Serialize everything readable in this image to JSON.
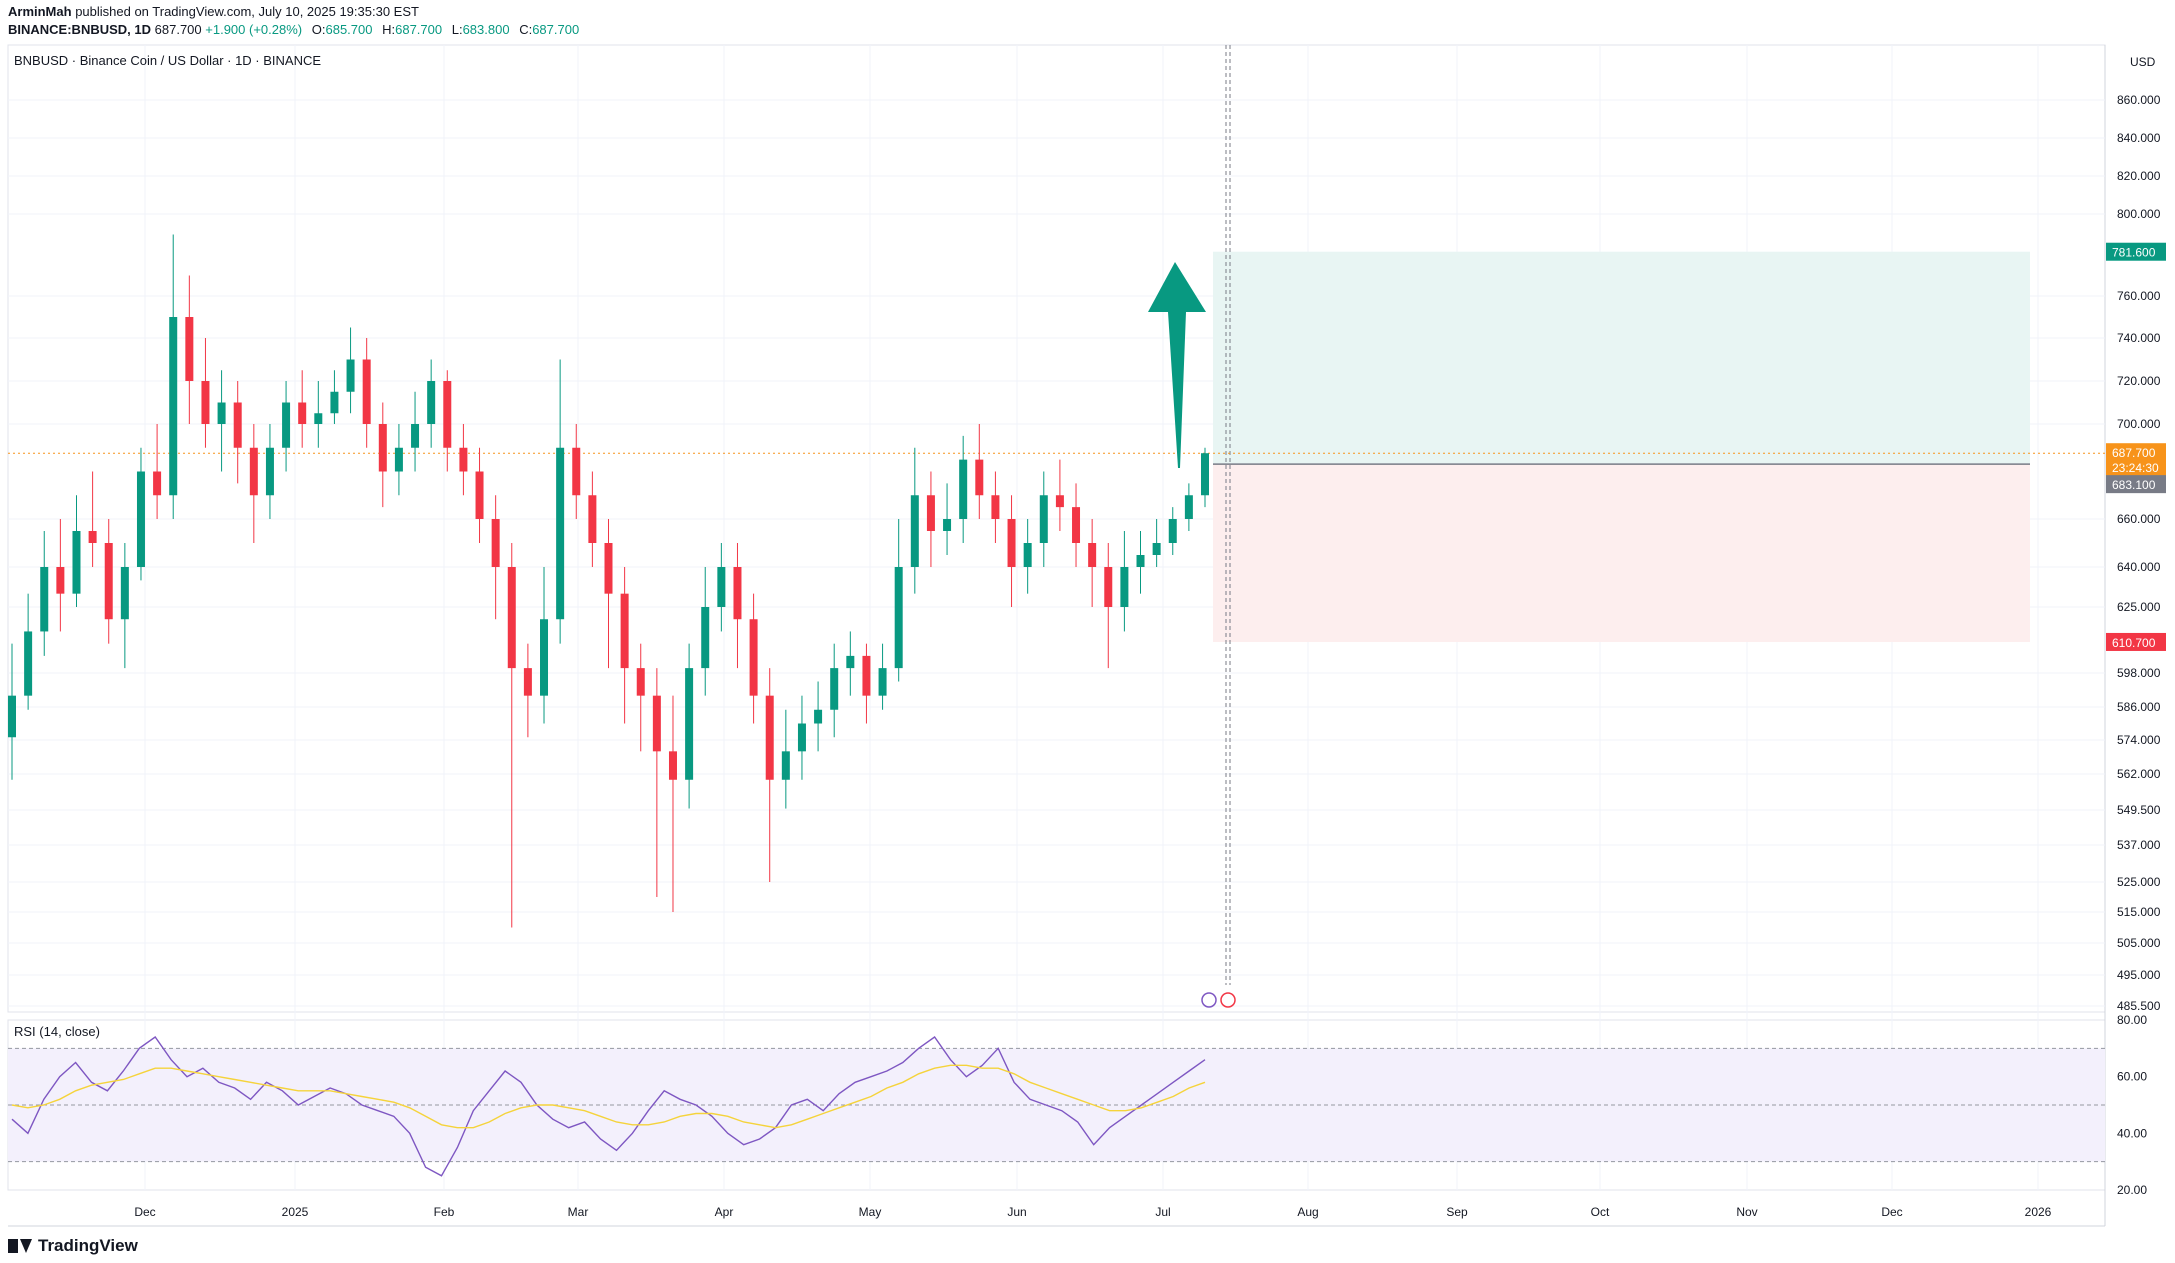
{
  "header": {
    "author": "ArminMah",
    "published_text": "published on TradingView.com, July 10, 2025 19:35:30 EST",
    "symbol": "BINANCE:BNBUSD, 1D",
    "last": "687.700",
    "change": "+1.900 (+0.28%)",
    "o_label": "O:",
    "o": "685.700",
    "h_label": "H:",
    "h": "687.700",
    "l_label": "L:",
    "l": "683.800",
    "c_label": "C:",
    "c": "687.700"
  },
  "legend": "BNBUSD · Binance Coin / US Dollar · 1D · BINANCE",
  "rsi_legend": "RSI (14, close)",
  "footer": {
    "brand": "TradingView"
  },
  "colors": {
    "up": "#089981",
    "down": "#f23645",
    "rsi": "#7e57c2",
    "rsi_ma": "#f5d33b",
    "target_zone": "#e8f5f3",
    "stop_zone": "#fdeeee",
    "last_price": "#f7931a",
    "entry": "#787b86"
  },
  "chart_data": [
    {
      "type": "candlestick",
      "currency_label": "USD",
      "y_ticks": [
        "860.000",
        "840.000",
        "820.000",
        "800.000",
        "760.000",
        "740.000",
        "720.000",
        "700.000",
        "660.000",
        "640.000",
        "625.000",
        "598.000",
        "586.000",
        "574.000",
        "562.000",
        "549.500",
        "537.000",
        "525.000",
        "515.000",
        "505.000",
        "495.000",
        "485.500"
      ],
      "x_ticks": [
        "Dec",
        "2025",
        "Feb",
        "Mar",
        "Apr",
        "May",
        "Jun",
        "Jul",
        "Aug",
        "Sep",
        "Oct",
        "Nov",
        "Dec",
        "2026"
      ],
      "price_markers": {
        "target": "781.600",
        "last": "687.700",
        "countdown": "23:24:30",
        "entry": "683.100",
        "stop": "610.700"
      },
      "position": {
        "entry": 683.1,
        "target": 781.6,
        "stop": 610.7
      },
      "arrow": "up",
      "candles_approx": [
        [
          575,
          590,
          610,
          560
        ],
        [
          590,
          615,
          630,
          585
        ],
        [
          615,
          640,
          655,
          605
        ],
        [
          640,
          630,
          660,
          615
        ],
        [
          630,
          655,
          670,
          625
        ],
        [
          655,
          650,
          680,
          640
        ],
        [
          650,
          620,
          660,
          610
        ],
        [
          620,
          640,
          650,
          600
        ],
        [
          640,
          680,
          690,
          635
        ],
        [
          680,
          670,
          700,
          660
        ],
        [
          670,
          750,
          790,
          660
        ],
        [
          750,
          720,
          770,
          700
        ],
        [
          720,
          700,
          740,
          690
        ],
        [
          700,
          710,
          725,
          680
        ],
        [
          710,
          690,
          720,
          675
        ],
        [
          690,
          670,
          700,
          650
        ],
        [
          670,
          690,
          700,
          660
        ],
        [
          690,
          710,
          720,
          680
        ],
        [
          710,
          700,
          725,
          690
        ],
        [
          700,
          705,
          720,
          690
        ],
        [
          705,
          715,
          725,
          700
        ],
        [
          715,
          730,
          745,
          705
        ],
        [
          730,
          700,
          740,
          690
        ],
        [
          700,
          680,
          710,
          665
        ],
        [
          680,
          690,
          700,
          670
        ],
        [
          690,
          700,
          715,
          680
        ],
        [
          700,
          720,
          730,
          690
        ],
        [
          720,
          690,
          725,
          680
        ],
        [
          690,
          680,
          700,
          670
        ],
        [
          680,
          660,
          690,
          650
        ],
        [
          660,
          640,
          670,
          620
        ],
        [
          640,
          600,
          650,
          510
        ],
        [
          600,
          590,
          610,
          575
        ],
        [
          590,
          620,
          640,
          580
        ],
        [
          620,
          690,
          730,
          610
        ],
        [
          690,
          670,
          700,
          660
        ],
        [
          670,
          650,
          680,
          640
        ],
        [
          650,
          630,
          660,
          600
        ],
        [
          630,
          600,
          640,
          580
        ],
        [
          600,
          590,
          610,
          570
        ],
        [
          590,
          570,
          600,
          520
        ],
        [
          570,
          560,
          590,
          515
        ],
        [
          560,
          600,
          610,
          550
        ],
        [
          600,
          625,
          640,
          590
        ],
        [
          625,
          640,
          650,
          615
        ],
        [
          640,
          620,
          650,
          600
        ],
        [
          620,
          590,
          630,
          580
        ],
        [
          590,
          560,
          600,
          525
        ],
        [
          560,
          570,
          585,
          550
        ],
        [
          570,
          580,
          590,
          560
        ],
        [
          580,
          585,
          595,
          570
        ],
        [
          585,
          600,
          610,
          575
        ],
        [
          600,
          605,
          615,
          590
        ],
        [
          605,
          590,
          610,
          580
        ],
        [
          590,
          600,
          610,
          585
        ],
        [
          600,
          640,
          660,
          595
        ],
        [
          640,
          670,
          690,
          630
        ],
        [
          670,
          655,
          680,
          640
        ],
        [
          655,
          660,
          675,
          645
        ],
        [
          660,
          685,
          695,
          650
        ],
        [
          685,
          670,
          700,
          660
        ],
        [
          670,
          660,
          680,
          650
        ],
        [
          660,
          640,
          670,
          625
        ],
        [
          640,
          650,
          660,
          630
        ],
        [
          650,
          670,
          680,
          640
        ],
        [
          670,
          665,
          685,
          655
        ],
        [
          665,
          650,
          675,
          640
        ],
        [
          650,
          640,
          660,
          625
        ],
        [
          640,
          625,
          650,
          600
        ],
        [
          625,
          640,
          655,
          615
        ],
        [
          640,
          645,
          655,
          630
        ],
        [
          645,
          650,
          660,
          640
        ],
        [
          650,
          660,
          665,
          645
        ],
        [
          660,
          670,
          675,
          655
        ],
        [
          670,
          687.7,
          690,
          665
        ]
      ]
    },
    {
      "type": "line",
      "name": "RSI (14, close)",
      "y_ticks": [
        "80.00",
        "60.00",
        "40.00",
        "20.00"
      ],
      "bands": [
        70,
        50,
        30
      ],
      "ylim": [
        20,
        80
      ],
      "series": [
        {
          "name": "RSI",
          "values": [
            45,
            40,
            52,
            60,
            65,
            58,
            55,
            62,
            70,
            74,
            66,
            60,
            63,
            58,
            56,
            52,
            58,
            55,
            50,
            53,
            56,
            54,
            50,
            48,
            46,
            40,
            28,
            25,
            35,
            48,
            55,
            62,
            58,
            50,
            45,
            42,
            44,
            38,
            34,
            40,
            48,
            55,
            52,
            50,
            46,
            40,
            36,
            38,
            42,
            50,
            52,
            48,
            54,
            58,
            60,
            62,
            65,
            70,
            74,
            66,
            60,
            64,
            70,
            58,
            52,
            50,
            48,
            44,
            36,
            42,
            46,
            50,
            54,
            58,
            62,
            66
          ]
        },
        {
          "name": "RSI-based MA",
          "values": [
            50,
            49,
            50,
            52,
            55,
            57,
            58,
            59,
            61,
            63,
            63,
            62,
            61,
            60,
            59,
            58,
            57,
            56,
            55,
            55,
            55,
            54,
            53,
            52,
            51,
            49,
            46,
            43,
            42,
            42,
            44,
            47,
            49,
            50,
            50,
            49,
            48,
            46,
            44,
            43,
            43,
            44,
            46,
            47,
            47,
            46,
            44,
            43,
            42,
            43,
            45,
            47,
            49,
            51,
            53,
            56,
            58,
            61,
            63,
            64,
            64,
            63,
            63,
            61,
            58,
            56,
            54,
            52,
            50,
            48,
            48,
            49,
            51,
            53,
            56,
            58
          ]
        }
      ]
    }
  ]
}
